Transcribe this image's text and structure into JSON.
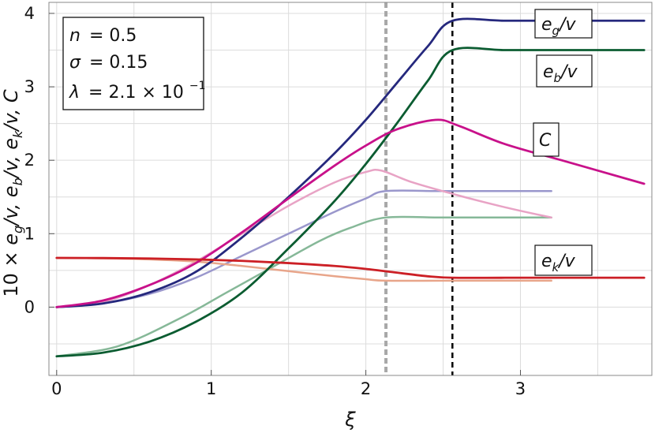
{
  "chart_data": {
    "type": "line",
    "xlabel": "ξ",
    "ylabel_parts": [
      "10 × ",
      "e",
      "g",
      "/v, ",
      "e",
      "b",
      "/v, ",
      "e",
      "k",
      "/v, ",
      "C"
    ],
    "xlim": [
      -0.05,
      3.85
    ],
    "ylim": [
      -0.93,
      4.15
    ],
    "x_ticks": [
      0,
      1,
      2,
      3
    ],
    "x_tick_labels": [
      "0",
      "1",
      "2",
      "3"
    ],
    "y_ticks": [
      0,
      1,
      2,
      3,
      4
    ],
    "y_tick_labels": [
      "0",
      "1",
      "2",
      "3",
      "4"
    ],
    "grid": true,
    "params": {
      "n": {
        "symbol": "n",
        "value": "= 0.5"
      },
      "sigma": {
        "symbol": "σ",
        "value": "= 0.15"
      },
      "lambda": {
        "symbol": "λ",
        "value": "= 2.1 × 10",
        "exponent": "−1"
      }
    },
    "labels": {
      "eg": {
        "main": "e",
        "sub": "g",
        "suffix": "/v"
      },
      "eb": {
        "main": "e",
        "sub": "b",
        "suffix": "/v"
      },
      "C": {
        "main": "C"
      },
      "ek": {
        "main": "e",
        "sub": "k",
        "suffix": "/v"
      }
    },
    "vlines": [
      {
        "x": 2.13,
        "color": "#a8a8a8",
        "style": "dashed"
      },
      {
        "x": 2.56,
        "color": "#000000",
        "style": "dashed"
      }
    ],
    "series": [
      {
        "key": "eg_light",
        "color": "#9a97cc",
        "width": 2.5,
        "x": [
          0,
          0.3,
          0.6,
          0.9,
          1.2,
          1.5,
          1.8,
          2.0,
          2.13,
          2.5,
          2.9,
          3.2
        ],
        "y": [
          0,
          0.05,
          0.18,
          0.4,
          0.7,
          1.0,
          1.3,
          1.48,
          1.58,
          1.58,
          1.58,
          1.58
        ]
      },
      {
        "key": "eb_light",
        "color": "#86b898",
        "width": 2.5,
        "x": [
          0,
          0.4,
          0.8,
          1.1,
          1.4,
          1.7,
          1.9,
          2.13,
          2.5,
          2.9,
          3.2
        ],
        "y": [
          -0.67,
          -0.53,
          -0.15,
          0.2,
          0.55,
          0.9,
          1.08,
          1.22,
          1.22,
          1.22,
          1.22
        ]
      },
      {
        "key": "C_light",
        "color": "#e8a3c5",
        "width": 2.5,
        "x": [
          0,
          0.3,
          0.6,
          0.9,
          1.2,
          1.5,
          1.8,
          2.0,
          2.1,
          2.3,
          2.6,
          2.9,
          3.2
        ],
        "y": [
          0,
          0.07,
          0.3,
          0.62,
          1.0,
          1.38,
          1.7,
          1.84,
          1.86,
          1.7,
          1.52,
          1.36,
          1.22
        ]
      },
      {
        "key": "ek_light",
        "color": "#e8a58a",
        "width": 2.5,
        "x": [
          0,
          0.3,
          0.6,
          0.9,
          1.2,
          1.5,
          1.8,
          2.0,
          2.13,
          2.5,
          2.9,
          3.2
        ],
        "y": [
          0.67,
          0.665,
          0.65,
          0.62,
          0.56,
          0.49,
          0.42,
          0.38,
          0.36,
          0.36,
          0.36,
          0.36
        ]
      },
      {
        "key": "eg",
        "color": "#25287d",
        "width": 2.8,
        "x": [
          0,
          0.3,
          0.6,
          0.9,
          1.2,
          1.5,
          1.8,
          2.0,
          2.2,
          2.4,
          2.56,
          2.9,
          3.3,
          3.8
        ],
        "y": [
          0,
          0.05,
          0.2,
          0.48,
          0.95,
          1.5,
          2.1,
          2.55,
          3.05,
          3.55,
          3.9,
          3.9,
          3.9,
          3.9
        ]
      },
      {
        "key": "eb",
        "color": "#0b5c31",
        "width": 2.8,
        "x": [
          0,
          0.3,
          0.6,
          0.9,
          1.2,
          1.5,
          1.8,
          2.0,
          2.2,
          2.4,
          2.56,
          2.9,
          3.3,
          3.8
        ],
        "y": [
          -0.67,
          -0.62,
          -0.47,
          -0.2,
          0.2,
          0.8,
          1.45,
          1.95,
          2.5,
          3.08,
          3.5,
          3.5,
          3.5,
          3.5
        ]
      },
      {
        "key": "C",
        "color": "#c8118a",
        "width": 2.8,
        "x": [
          0,
          0.3,
          0.6,
          0.9,
          1.2,
          1.5,
          1.8,
          2.0,
          2.2,
          2.45,
          2.6,
          2.9,
          3.3,
          3.8
        ],
        "y": [
          0,
          0.09,
          0.3,
          0.6,
          1.02,
          1.48,
          1.93,
          2.2,
          2.42,
          2.55,
          2.47,
          2.22,
          1.98,
          1.68
        ]
      },
      {
        "key": "ek",
        "color": "#cc1f25",
        "width": 2.8,
        "x": [
          0,
          0.3,
          0.6,
          0.9,
          1.2,
          1.5,
          1.8,
          2.0,
          2.2,
          2.4,
          2.56,
          2.9,
          3.3,
          3.8
        ],
        "y": [
          0.67,
          0.668,
          0.662,
          0.65,
          0.63,
          0.6,
          0.56,
          0.52,
          0.47,
          0.42,
          0.4,
          0.4,
          0.4,
          0.4
        ]
      }
    ]
  }
}
